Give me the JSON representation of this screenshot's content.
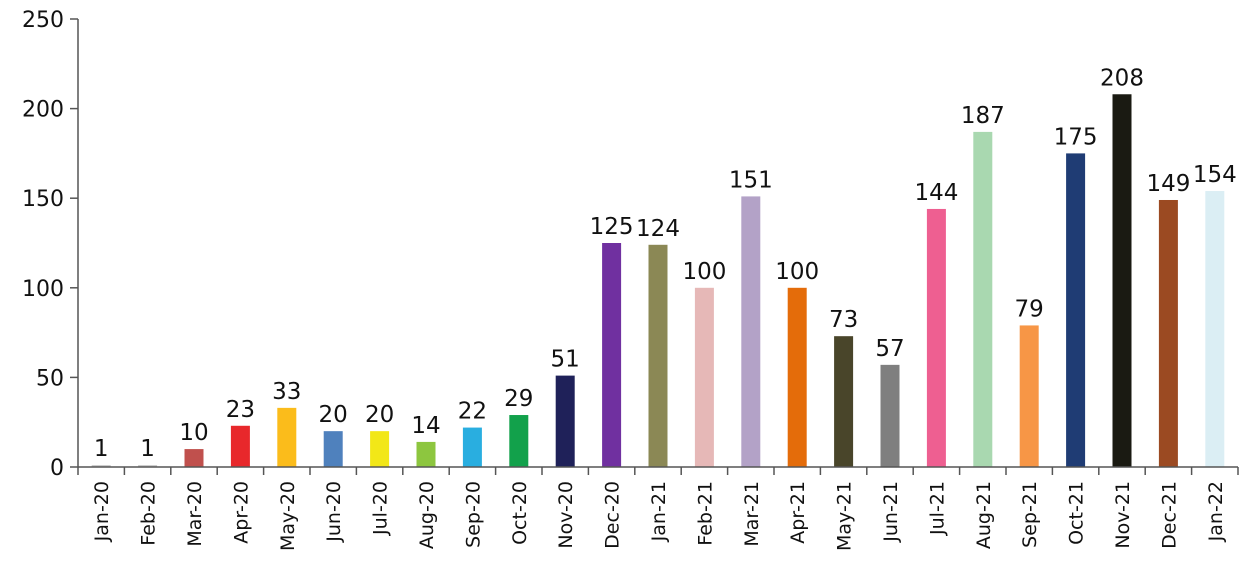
{
  "chart_data": {
    "type": "bar",
    "title": "",
    "xlabel": "",
    "ylabel": "",
    "ylim": [
      0,
      250
    ],
    "yticks": [
      0,
      50,
      100,
      150,
      200,
      250
    ],
    "grid": false,
    "legend": "none",
    "categories": [
      "Jan-20",
      "Feb-20",
      "Mar-20",
      "Apr-20",
      "May-20",
      "Jun-20",
      "Jul-20",
      "Aug-20",
      "Sep-20",
      "Oct-20",
      "Nov-20",
      "Dec-20",
      "Jan-21",
      "Feb-21",
      "Mar-21",
      "Apr-21",
      "May-21",
      "Jun-21",
      "Jul-21",
      "Aug-21",
      "Sep-21",
      "Oct-21",
      "Nov-21",
      "Dec-21",
      "Jan-22"
    ],
    "values": [
      1,
      1,
      10,
      23,
      33,
      20,
      20,
      14,
      22,
      29,
      51,
      125,
      124,
      100,
      151,
      100,
      73,
      57,
      144,
      187,
      79,
      175,
      208,
      149,
      154
    ],
    "colors": [
      "#c0c0c0",
      "#c0c0c0",
      "#c0504d",
      "#e8282b",
      "#fbbc1b",
      "#4f81bd",
      "#f2e718",
      "#8dc63f",
      "#29aee0",
      "#12a14b",
      "#1f2159",
      "#7030a0",
      "#8b8855",
      "#e6b8b7",
      "#b3a2c7",
      "#e46c0a",
      "#49452a",
      "#7f7f7f",
      "#ee5f91",
      "#a9d8b0",
      "#f79646",
      "#1f3c74",
      "#1a1a12",
      "#9b4a22",
      "#dbeef4"
    ]
  }
}
